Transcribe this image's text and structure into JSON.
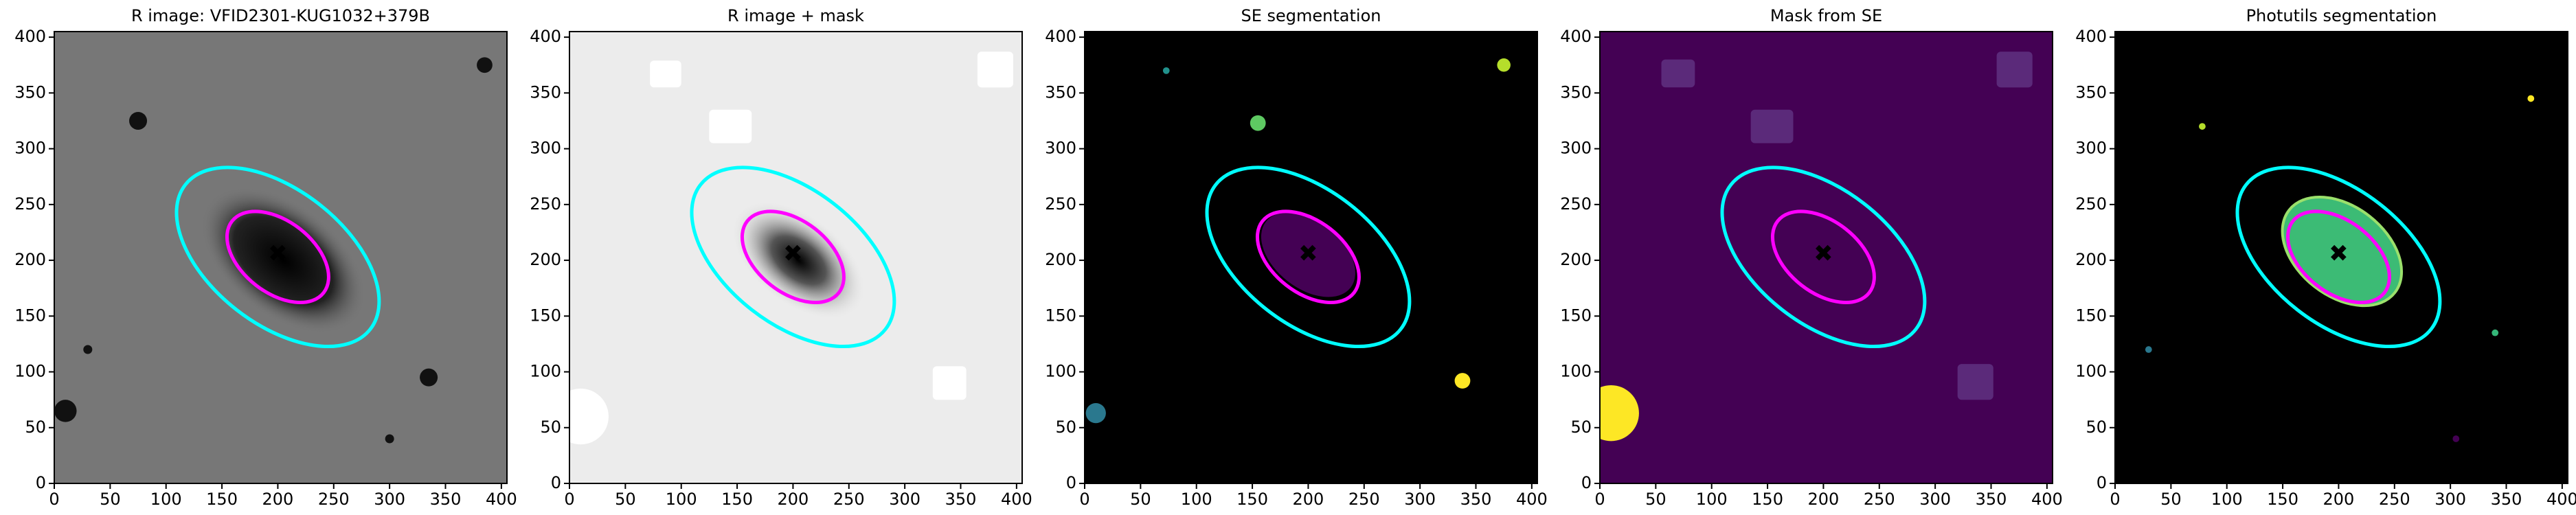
{
  "chart_data": [
    {
      "type": "image",
      "title": "R image: VFID2301-KUG1032+379B",
      "xlim": [
        0,
        405
      ],
      "ylim": [
        0,
        405
      ],
      "xticks": [
        0,
        50,
        100,
        150,
        200,
        250,
        300,
        350,
        400
      ],
      "yticks": [
        0,
        50,
        100,
        150,
        200,
        250,
        300,
        350,
        400
      ]
    },
    {
      "type": "image",
      "title": "R image + mask",
      "xlim": [
        0,
        405
      ],
      "ylim": [
        0,
        405
      ],
      "xticks": [
        0,
        50,
        100,
        150,
        200,
        250,
        300,
        350,
        400
      ],
      "yticks": [
        0,
        50,
        100,
        150,
        200,
        250,
        300,
        350,
        400
      ]
    },
    {
      "type": "image",
      "title": "SE segmentation",
      "xlim": [
        0,
        405
      ],
      "ylim": [
        0,
        405
      ],
      "xticks": [
        0,
        50,
        100,
        150,
        200,
        250,
        300,
        350,
        400
      ],
      "yticks": [
        0,
        50,
        100,
        150,
        200,
        250,
        300,
        350,
        400
      ]
    },
    {
      "type": "image",
      "title": "Mask from SE",
      "xlim": [
        0,
        405
      ],
      "ylim": [
        0,
        405
      ],
      "xticks": [
        0,
        50,
        100,
        150,
        200,
        250,
        300,
        350,
        400
      ],
      "yticks": [
        0,
        50,
        100,
        150,
        200,
        250,
        300,
        350,
        400
      ]
    },
    {
      "type": "image",
      "title": "Photutils segmentation",
      "xlim": [
        0,
        405
      ],
      "ylim": [
        0,
        405
      ],
      "xticks": [
        0,
        50,
        100,
        150,
        200,
        250,
        300,
        350,
        400
      ],
      "yticks": [
        0,
        50,
        100,
        150,
        200,
        250,
        300,
        350,
        400
      ]
    }
  ]
}
